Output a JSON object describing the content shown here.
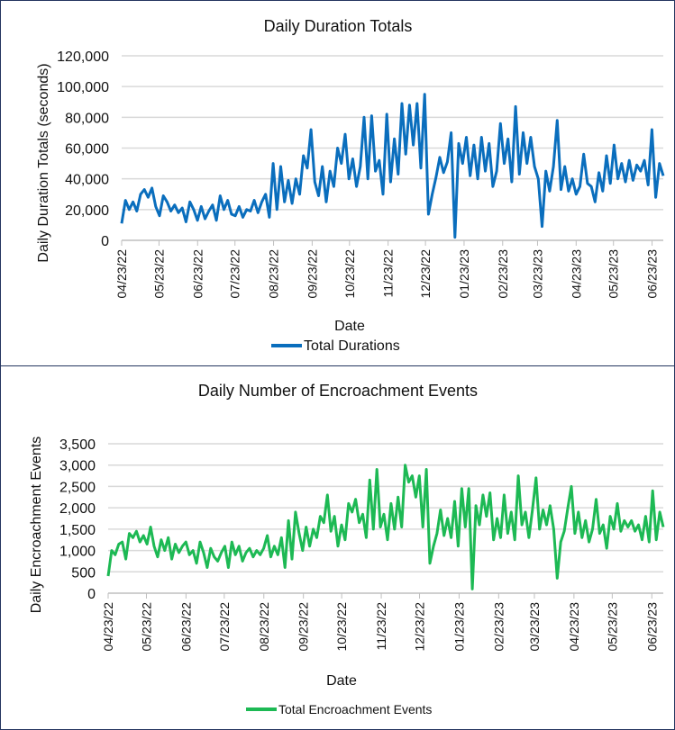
{
  "chart_data": [
    {
      "type": "line",
      "title": "Daily Duration Totals",
      "xlabel": "Date",
      "ylabel": "Daily  Duration Totals (seconds)",
      "ylim": [
        0,
        120000
      ],
      "yticks": [
        "0",
        "20,000",
        "40,000",
        "60,000",
        "80,000",
        "100,000",
        "120,000"
      ],
      "ytick_values": [
        0,
        20000,
        40000,
        60000,
        80000,
        100000,
        120000
      ],
      "xticks": [
        "04/23/22",
        "05/23/22",
        "06/23/22",
        "07/23/22",
        "08/23/22",
        "09/23/22",
        "10/23/22",
        "11/23/22",
        "12/23/22",
        "01/23/23",
        "02/23/23",
        "03/23/23",
        "04/23/23",
        "05/23/23",
        "06/23/23"
      ],
      "xtick_days": [
        0,
        30,
        61,
        91,
        122,
        153,
        183,
        214,
        244,
        275,
        306,
        334,
        365,
        395,
        426
      ],
      "x_range_days": [
        0,
        435
      ],
      "grid": true,
      "legend": "bottom",
      "color": "#0a6ebd",
      "series": [
        {
          "name": "Total Durations",
          "values": [
            11000,
            26000,
            20000,
            25000,
            19000,
            30000,
            33000,
            28000,
            34000,
            22000,
            16000,
            29000,
            25000,
            19000,
            23000,
            18000,
            21000,
            12000,
            25000,
            20000,
            13000,
            22000,
            14000,
            19000,
            23000,
            13000,
            29000,
            20000,
            26000,
            17000,
            16000,
            22000,
            15000,
            20000,
            19000,
            26000,
            18000,
            25000,
            30000,
            15000,
            50000,
            20000,
            48000,
            25000,
            39000,
            24000,
            40000,
            30000,
            55000,
            47000,
            72000,
            38000,
            29000,
            48000,
            25000,
            45000,
            35000,
            60000,
            50000,
            69000,
            40000,
            53000,
            35000,
            48000,
            80000,
            40000,
            81000,
            45000,
            52000,
            30000,
            82000,
            38000,
            66000,
            43000,
            89000,
            56000,
            88000,
            62000,
            89000,
            47000,
            95000,
            17000,
            30000,
            41000,
            54000,
            44000,
            51000,
            70000,
            2000,
            63000,
            50000,
            67000,
            42000,
            62000,
            40000,
            67000,
            45000,
            63000,
            35000,
            45000,
            76000,
            50000,
            66000,
            38000,
            87000,
            43000,
            70000,
            50000,
            67000,
            48000,
            40000,
            9000,
            45000,
            32000,
            48000,
            78000,
            33000,
            48000,
            32000,
            40000,
            30000,
            35000,
            56000,
            37000,
            35000,
            25000,
            44000,
            32000,
            55000,
            37000,
            62000,
            40000,
            50000,
            38000,
            52000,
            39000,
            49000,
            45000,
            52000,
            36000,
            72000,
            28000,
            50000,
            42000
          ]
        }
      ]
    },
    {
      "type": "line",
      "title": "Daily Number of Encroachment  Events",
      "xlabel": "Date",
      "ylabel": "Daily Encroachment Events",
      "ylim": [
        0,
        3500
      ],
      "yticks": [
        "0",
        "500",
        "1,000",
        "1,500",
        "2,000",
        "2,500",
        "3,000",
        "3,500"
      ],
      "ytick_values": [
        0,
        500,
        1000,
        1500,
        2000,
        2500,
        3000,
        3500
      ],
      "xticks": [
        "04/23/22",
        "05/23/22",
        "06/23/22",
        "07/23/22",
        "08/23/22",
        "09/23/22",
        "10/23/22",
        "11/23/22",
        "12/23/22",
        "01/23/23",
        "02/23/23",
        "03/23/23",
        "04/23/23",
        "05/23/23",
        "06/23/23"
      ],
      "xtick_days": [
        0,
        30,
        61,
        91,
        122,
        153,
        183,
        214,
        244,
        275,
        306,
        334,
        365,
        395,
        426
      ],
      "x_range_days": [
        0,
        435
      ],
      "grid": true,
      "legend": "bottom",
      "color": "#1db954",
      "series": [
        {
          "name": "Total Encroachment Events",
          "values": [
            400,
            1000,
            900,
            1150,
            1200,
            800,
            1400,
            1300,
            1450,
            1200,
            1350,
            1150,
            1550,
            1100,
            850,
            1250,
            1000,
            1300,
            800,
            1150,
            950,
            1100,
            1200,
            900,
            1000,
            700,
            1200,
            950,
            600,
            1050,
            850,
            750,
            950,
            1100,
            600,
            1200,
            900,
            1100,
            750,
            950,
            1050,
            850,
            1000,
            900,
            1050,
            1350,
            850,
            1100,
            900,
            1300,
            600,
            1700,
            800,
            1900,
            1400,
            1000,
            1550,
            1100,
            1500,
            1300,
            1800,
            1650,
            2300,
            1450,
            1800,
            1100,
            1600,
            1250,
            2100,
            1900,
            2200,
            1650,
            1850,
            1300,
            2650,
            1500,
            2900,
            1550,
            1850,
            1250,
            2100,
            1500,
            2250,
            1550,
            3000,
            2600,
            2750,
            2250,
            2750,
            1550,
            2900,
            700,
            1100,
            1400,
            1950,
            1350,
            1750,
            1300,
            2150,
            1100,
            2450,
            1550,
            2450,
            100,
            2050,
            1600,
            2300,
            1800,
            2350,
            1250,
            1750,
            1300,
            2300,
            1400,
            1900,
            1250,
            2750,
            1600,
            1900,
            1300,
            1950,
            2700,
            1500,
            1950,
            1600,
            2050,
            1500,
            350,
            1200,
            1450,
            2000,
            2500,
            1400,
            1900,
            1300,
            1700,
            1200,
            1500,
            2200,
            1400,
            1600,
            1050,
            1800,
            1500,
            2100,
            1450,
            1700,
            1550,
            1700,
            1450,
            1600,
            1250,
            1800,
            1200,
            2400,
            1250,
            1900,
            1550
          ]
        }
      ]
    }
  ]
}
